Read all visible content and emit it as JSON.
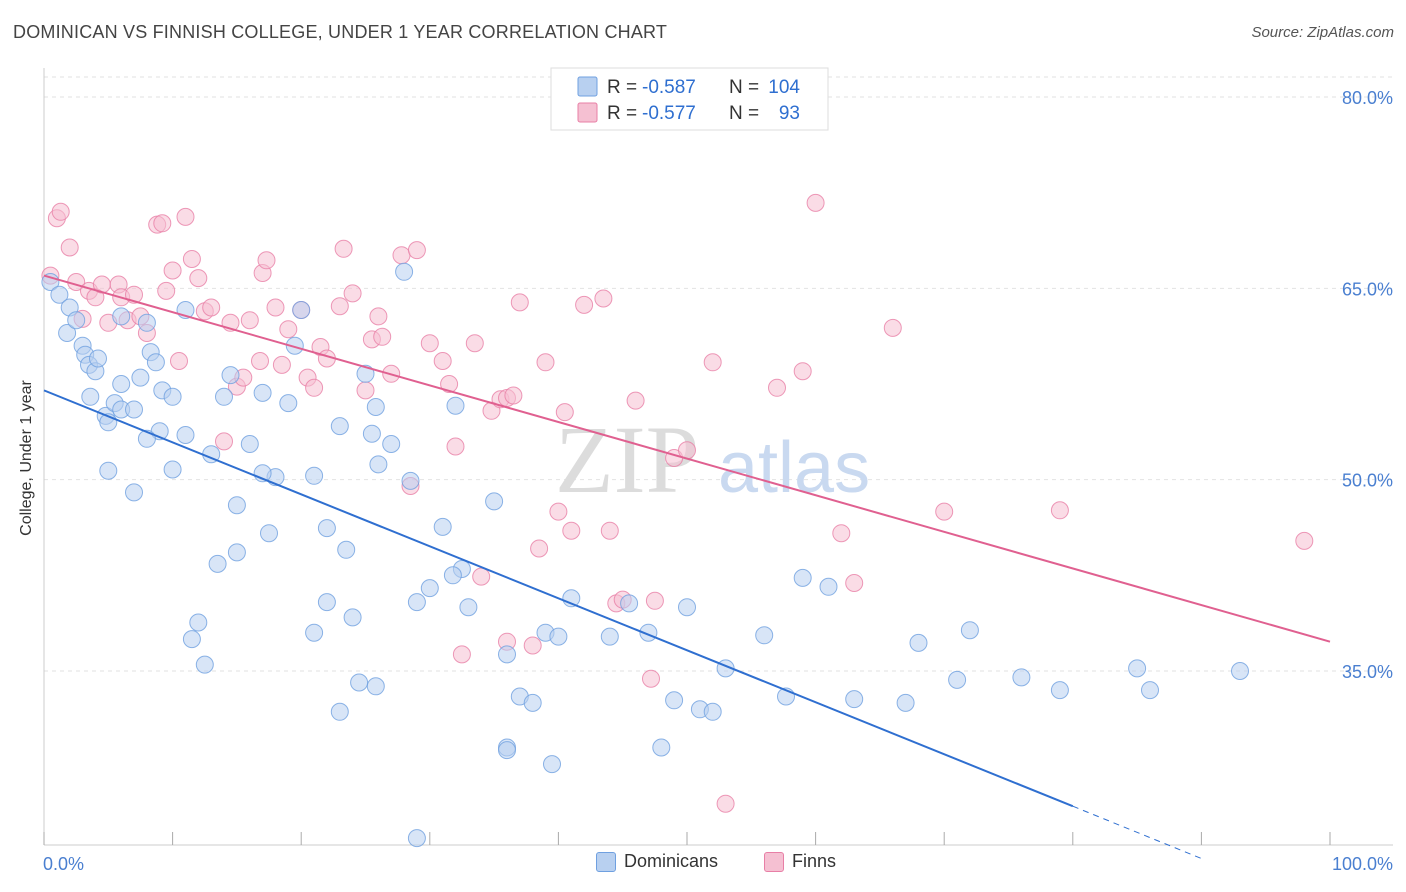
{
  "title": "DOMINICAN VS FINNISH COLLEGE, UNDER 1 YEAR CORRELATION CHART",
  "source": "Source: ZipAtlas.com",
  "watermark": {
    "zip": "ZIP",
    "atlas": "atlas"
  },
  "colors": {
    "blue": "#6fa0e0",
    "blue_fill": "#b8d0f0",
    "blue_line": "#2f6fd0",
    "pink": "#e87fa6",
    "pink_fill": "#f5c0d2",
    "pink_line": "#e06090",
    "tick": "#4a7fd0"
  },
  "legend": {
    "blue": {
      "r_label": "R = ",
      "r_value": "-0.587",
      "n_label": "N = ",
      "n_value": "104"
    },
    "pink": {
      "r_label": "R = ",
      "r_value": "-0.577",
      "n_label": "N = ",
      "n_value": "93"
    }
  },
  "bottom_legend": {
    "blue": "Dominicans",
    "pink": "Finns"
  },
  "chart_data": {
    "type": "scatter",
    "title": "DOMINICAN VS FINNISH COLLEGE, UNDER 1 YEAR CORRELATION CHART",
    "xlabel": "",
    "ylabel": "College, Under 1 year",
    "xlim": [
      0,
      100
    ],
    "ylim": [
      20,
      82
    ],
    "x_tick_labels": [
      "0.0%",
      "100.0%"
    ],
    "y_ticks": [
      35,
      50,
      65,
      80
    ],
    "y_tick_labels": [
      "35.0%",
      "50.0%",
      "65.0%",
      "80.0%"
    ],
    "series": [
      {
        "name": "Dominicans",
        "r": -0.587,
        "n": 104,
        "trend": {
          "x0": 0,
          "y0": 57.0,
          "x1": 80,
          "y1": 24.4,
          "dashed_to_x": 90,
          "dashed_to_y": 20.3
        },
        "points": [
          [
            0.5,
            65.5
          ],
          [
            1.2,
            64.5
          ],
          [
            2,
            63.5
          ],
          [
            1.8,
            61.5
          ],
          [
            2.5,
            62.5
          ],
          [
            3,
            60.5
          ],
          [
            3.2,
            59.8
          ],
          [
            3.5,
            59
          ],
          [
            4,
            58.5
          ],
          [
            4.2,
            59.5
          ],
          [
            3.6,
            56.5
          ],
          [
            4.8,
            55
          ],
          [
            5,
            54.5
          ],
          [
            5.5,
            56
          ],
          [
            6,
            55.5
          ],
          [
            7,
            55.5
          ],
          [
            7.5,
            58
          ],
          [
            6,
            62.8
          ],
          [
            8,
            62.3
          ],
          [
            8.3,
            60
          ],
          [
            8.7,
            59.2
          ],
          [
            9.2,
            57
          ],
          [
            10,
            56.5
          ],
          [
            9,
            53.8
          ],
          [
            11,
            53.5
          ],
          [
            11,
            63.3
          ],
          [
            13,
            52
          ],
          [
            14,
            56.5
          ],
          [
            14.5,
            58.2
          ],
          [
            16,
            52.8
          ],
          [
            17,
            56.8
          ],
          [
            18,
            50.2
          ],
          [
            19,
            56
          ],
          [
            20,
            63.3
          ],
          [
            19.5,
            60.5
          ],
          [
            21,
            50.3
          ],
          [
            22,
            46.2
          ],
          [
            23,
            54.2
          ],
          [
            23.5,
            44.5
          ],
          [
            24,
            39.2
          ],
          [
            25,
            58.3
          ],
          [
            25.5,
            53.6
          ],
          [
            25.8,
            55.7
          ],
          [
            26,
            51.2
          ],
          [
            27,
            52.8
          ],
          [
            28,
            66.3
          ],
          [
            29,
            40.4
          ],
          [
            28.5,
            49.9
          ],
          [
            30,
            41.5
          ],
          [
            31,
            46.3
          ],
          [
            32,
            55.8
          ],
          [
            32.5,
            43
          ],
          [
            33,
            40
          ],
          [
            35,
            48.3
          ],
          [
            36,
            36.3
          ],
          [
            36,
            29
          ],
          [
            37,
            33
          ],
          [
            38,
            32.5
          ],
          [
            39,
            38
          ],
          [
            39.5,
            27.7
          ],
          [
            40,
            37.7
          ],
          [
            41,
            40.7
          ],
          [
            44,
            37.7
          ],
          [
            45.5,
            40.3
          ],
          [
            47,
            38
          ],
          [
            48,
            29
          ],
          [
            49,
            32.7
          ],
          [
            50,
            40
          ],
          [
            51,
            32
          ],
          [
            52,
            31.8
          ],
          [
            53,
            35.2
          ],
          [
            56,
            37.8
          ],
          [
            57.7,
            33
          ],
          [
            59,
            42.3
          ],
          [
            61,
            41.6
          ],
          [
            63,
            32.8
          ],
          [
            67,
            32.5
          ],
          [
            71,
            34.3
          ],
          [
            68,
            37.2
          ],
          [
            72,
            38.2
          ],
          [
            76,
            34.5
          ],
          [
            79,
            33.5
          ],
          [
            85,
            35.2
          ],
          [
            86,
            33.5
          ],
          [
            93,
            35
          ],
          [
            36,
            28.8
          ],
          [
            31.8,
            42.5
          ],
          [
            25.8,
            33.8
          ],
          [
            24.5,
            34.1
          ],
          [
            23,
            31.8
          ],
          [
            22,
            40.4
          ],
          [
            21,
            38
          ],
          [
            17.5,
            45.8
          ],
          [
            15,
            44.3
          ],
          [
            13.5,
            43.4
          ],
          [
            12,
            38.8
          ],
          [
            12.5,
            35.5
          ],
          [
            11.5,
            37.5
          ],
          [
            10,
            50.8
          ],
          [
            8,
            53.2
          ],
          [
            6,
            57.5
          ],
          [
            5,
            50.7
          ],
          [
            7,
            49
          ],
          [
            29,
            21.9
          ],
          [
            17,
            50.5
          ],
          [
            15,
            48
          ]
        ]
      },
      {
        "name": "Finns",
        "r": -0.577,
        "n": 93,
        "trend": {
          "x0": 0,
          "y0": 66.0,
          "x1": 100,
          "y1": 37.3
        },
        "points": [
          [
            0.5,
            66
          ],
          [
            1,
            70.5
          ],
          [
            1.3,
            71
          ],
          [
            2,
            68.2
          ],
          [
            2.5,
            65.5
          ],
          [
            3,
            62.6
          ],
          [
            3.5,
            64.8
          ],
          [
            4,
            64.3
          ],
          [
            4.5,
            65.3
          ],
          [
            5,
            62.3
          ],
          [
            5.8,
            65.3
          ],
          [
            6,
            64.3
          ],
          [
            6.5,
            62.5
          ],
          [
            7,
            64.5
          ],
          [
            7.5,
            62.8
          ],
          [
            8,
            61.5
          ],
          [
            8.8,
            70
          ],
          [
            9.2,
            70.1
          ],
          [
            9.5,
            64.8
          ],
          [
            10,
            66.4
          ],
          [
            10.5,
            59.3
          ],
          [
            11,
            70.6
          ],
          [
            11.5,
            67.3
          ],
          [
            12,
            65.8
          ],
          [
            12.5,
            63.2
          ],
          [
            13,
            63.5
          ],
          [
            14,
            53
          ],
          [
            14.5,
            62.3
          ],
          [
            15,
            57.3
          ],
          [
            15.5,
            58
          ],
          [
            16,
            62.5
          ],
          [
            16.8,
            59.3
          ],
          [
            17,
            66.2
          ],
          [
            17.3,
            67.2
          ],
          [
            18,
            63.5
          ],
          [
            18.5,
            59
          ],
          [
            19,
            61.8
          ],
          [
            20,
            63.3
          ],
          [
            20.5,
            58
          ],
          [
            21,
            57.2
          ],
          [
            21.5,
            60.4
          ],
          [
            22,
            59.5
          ],
          [
            23,
            63.6
          ],
          [
            23.3,
            68.1
          ],
          [
            24,
            64.6
          ],
          [
            25,
            57
          ],
          [
            25.5,
            61
          ],
          [
            26,
            62.8
          ],
          [
            26.3,
            61.2
          ],
          [
            27,
            58.3
          ],
          [
            27.8,
            67.6
          ],
          [
            28.5,
            49.5
          ],
          [
            29,
            68
          ],
          [
            30,
            60.7
          ],
          [
            31,
            59.3
          ],
          [
            31.5,
            57.5
          ],
          [
            32,
            52.6
          ],
          [
            32.5,
            36.3
          ],
          [
            33.5,
            60.7
          ],
          [
            34,
            42.4
          ],
          [
            34.8,
            55.4
          ],
          [
            35.5,
            56.3
          ],
          [
            36,
            56.4
          ],
          [
            36.5,
            56.6
          ],
          [
            37,
            63.9
          ],
          [
            38,
            37
          ],
          [
            38.5,
            44.6
          ],
          [
            39,
            59.2
          ],
          [
            40,
            47.5
          ],
          [
            40.5,
            55.3
          ],
          [
            41,
            46
          ],
          [
            42,
            63.7
          ],
          [
            43.5,
            64.2
          ],
          [
            44,
            46
          ],
          [
            44.5,
            40.3
          ],
          [
            45,
            40.6
          ],
          [
            46,
            56.2
          ],
          [
            47.2,
            34.4
          ],
          [
            47.5,
            40.5
          ],
          [
            49,
            51.7
          ],
          [
            50,
            52.3
          ],
          [
            52,
            59.2
          ],
          [
            53,
            24.6
          ],
          [
            57,
            57.2
          ],
          [
            60,
            71.7
          ],
          [
            59,
            58.5
          ],
          [
            62,
            45.8
          ],
          [
            63,
            41.9
          ],
          [
            66,
            61.9
          ],
          [
            70,
            47.5
          ],
          [
            79,
            47.6
          ],
          [
            98,
            45.2
          ],
          [
            36,
            37.3
          ]
        ]
      }
    ]
  }
}
